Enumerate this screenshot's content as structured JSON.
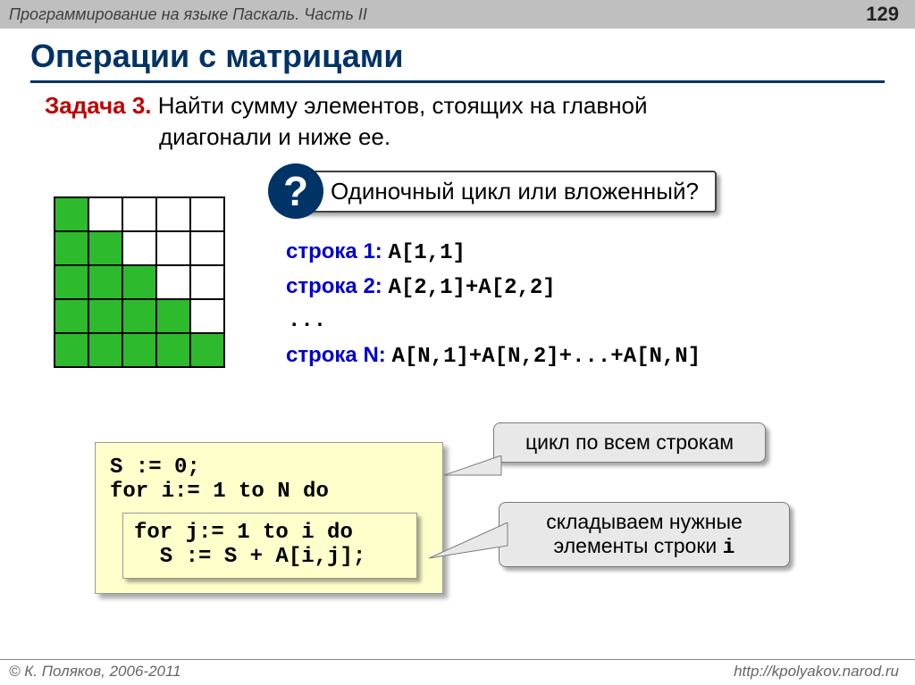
{
  "header": {
    "course": "Программирование на языке Паскаль. Часть II",
    "page": "129"
  },
  "title": "Операции с матрицами",
  "task": {
    "label": "Задача 3.",
    "text_line1": " Найти сумму элементов, стоящих  на главной",
    "text_line2": "диагонали и ниже ее."
  },
  "question": "Одиночный цикл или вложенный?",
  "matrix": {
    "green": "#2dba2d",
    "white": "#ffffff",
    "cells": [
      [
        1,
        0,
        0,
        0,
        0
      ],
      [
        1,
        1,
        0,
        0,
        0
      ],
      [
        1,
        1,
        1,
        0,
        0
      ],
      [
        1,
        1,
        1,
        1,
        0
      ],
      [
        1,
        1,
        1,
        1,
        1
      ]
    ]
  },
  "rows": {
    "r1_label": "строка 1:",
    "r1_code": "A[1,1]",
    "r2_label": "строка 2:",
    "r2_code": "A[2,1]+A[2,2]",
    "dots": "...",
    "rn_label": "строка N:",
    "rn_code": "A[N,1]+A[N,2]+...+A[N,N]"
  },
  "code": {
    "l1": "S := 0;",
    "l2": "for i:= 1 to N do",
    "l3": "for j:= 1 to i do",
    "l4": "  S := S + A[i,j];"
  },
  "callout1": "цикл по всем строкам",
  "callout2_a": "складываем нужные",
  "callout2_b": "элементы строки ",
  "callout2_i": "i",
  "footer": {
    "left": "© К. Поляков, 2006-2011",
    "right": "http://kpolyakov.narod.ru"
  },
  "colors": {
    "darkblue": "#003366",
    "red": "#c00000",
    "royal": "#0000d0",
    "callout_bg": "#e8e8e8",
    "code_bg": "#ffffcc"
  }
}
